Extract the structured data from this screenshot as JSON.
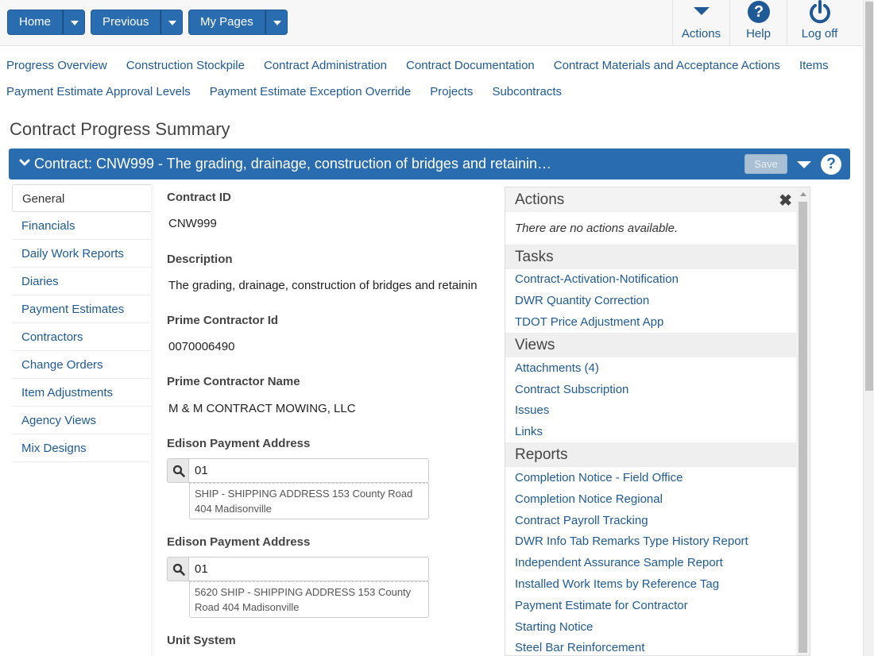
{
  "topbar": {
    "buttons": [
      {
        "label": "Home"
      },
      {
        "label": "Previous"
      },
      {
        "label": "My Pages"
      }
    ],
    "right": {
      "actions": "Actions",
      "help": "Help",
      "help_glyph": "?",
      "logoff": "Log off"
    }
  },
  "nav": {
    "row1": [
      "Progress Overview",
      "Construction Stockpile",
      "Contract Administration",
      "Contract Documentation",
      "Contract Materials and Acceptance Actions",
      "Items"
    ],
    "row2": [
      "Payment Estimate Approval Levels",
      "Payment Estimate Exception Override",
      "Projects",
      "Subcontracts"
    ]
  },
  "page_title": "Contract Progress Summary",
  "contract_bar": {
    "title": "Contract: CNW999 - The grading, drainage, construction of bridges and retainin…",
    "save_label": "Save",
    "help_glyph": "?"
  },
  "sidebar": {
    "items": [
      "General",
      "Financials",
      "Daily Work Reports",
      "Diaries",
      "Payment Estimates",
      "Contractors",
      "Change Orders",
      "Item Adjustments",
      "Agency Views",
      "Mix Designs"
    ],
    "active_index": 0
  },
  "form": {
    "contract_id_label": "Contract ID",
    "contract_id_value": "CNW999",
    "description_label": "Description",
    "description_value": "The grading, drainage, construction of bridges and retainin",
    "prime_id_label": "Prime Contractor Id",
    "prime_id_value": "0070006490",
    "prime_name_label": "Prime Contractor Name",
    "prime_name_value": "M & M CONTRACT MOWING, LLC",
    "edison1_label": "Edison Payment Address",
    "edison1_value": "01",
    "edison1_desc": "SHIP - SHIPPING ADDRESS 153 County Road 404 Madisonville",
    "edison2_label": "Edison Payment Address",
    "edison2_value": "01",
    "edison2_desc": "5620 SHIP - SHIPPING ADDRESS 153 County Road 404 Madisonville",
    "unit_system_label": "Unit System"
  },
  "actions_panel": {
    "actions_title": "Actions",
    "no_actions": "There are no actions available.",
    "close_glyph": "✖",
    "tasks_title": "Tasks",
    "tasks": [
      "Contract-Activation-Notification",
      "DWR Quantity Correction",
      "TDOT Price Adjustment App"
    ],
    "views_title": "Views",
    "views": [
      "Attachments (4)",
      "Contract Subscription",
      "Issues",
      "Links"
    ],
    "reports_title": "Reports",
    "reports": [
      "Completion Notice - Field Office",
      "Completion Notice Regional",
      "Contract Payroll Tracking",
      "DWR Info Tab Remarks Type History Report",
      "Independent Assurance Sample Report",
      "Installed Work Items by Reference Tag",
      "Payment Estimate for Contractor",
      "Starting Notice",
      "Steel Bar Reinforcement"
    ]
  },
  "colors": {
    "primary": "#2a6cb0",
    "link": "#1f5a96"
  }
}
